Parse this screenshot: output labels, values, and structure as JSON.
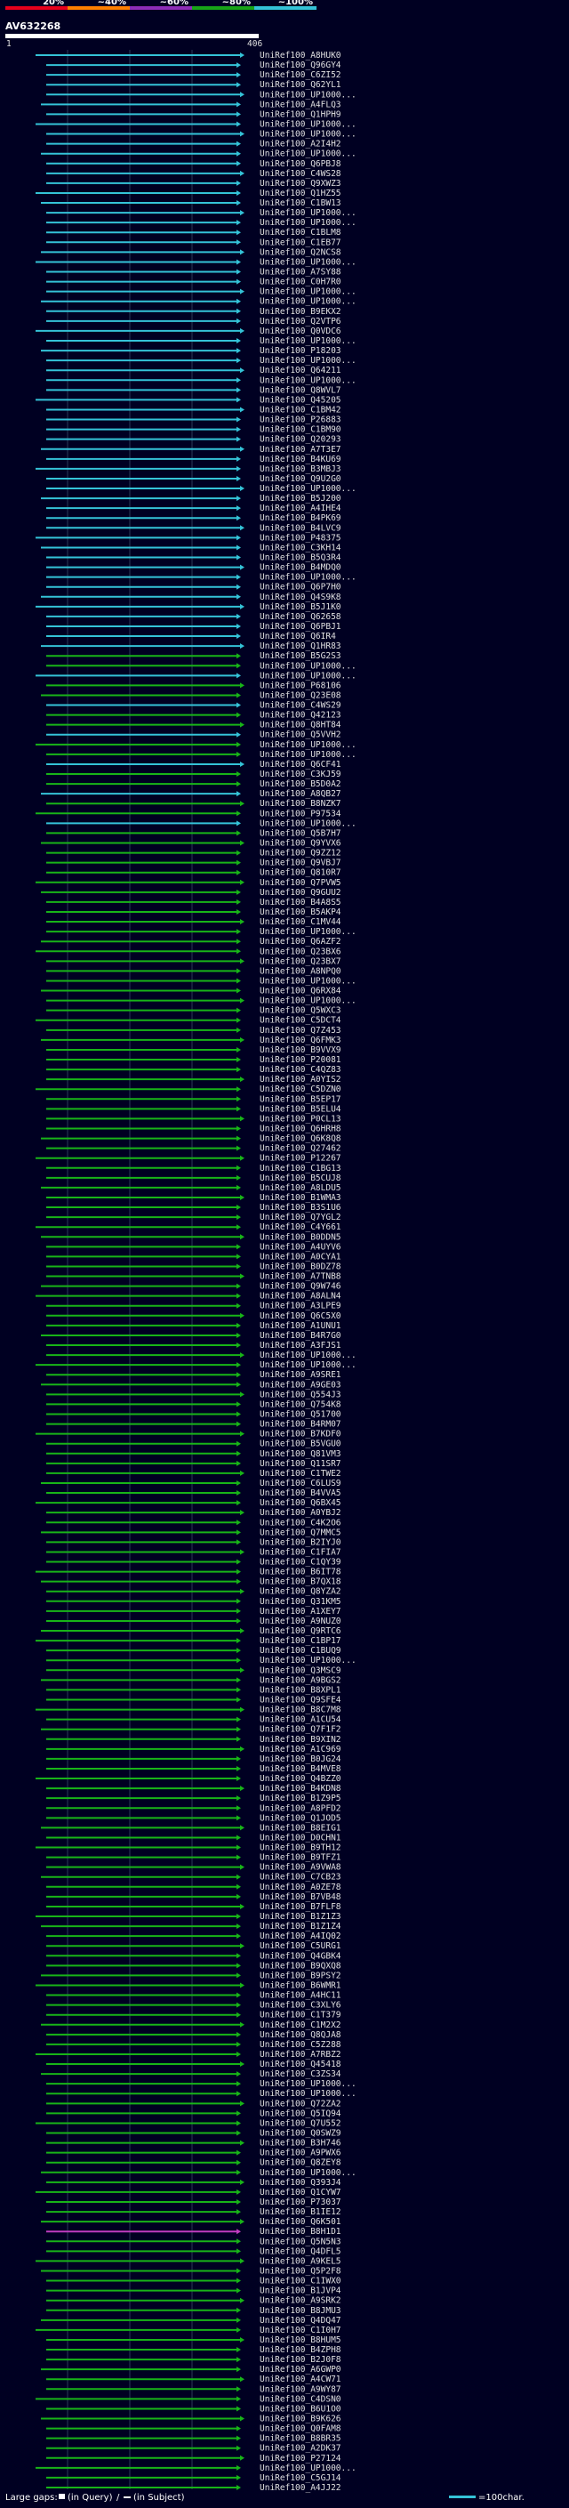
{
  "chart_data": {
    "type": "alignment-overview",
    "query_id": "AV632268",
    "query_length": 406,
    "axis_start_label": "1",
    "axis_end_label": "406",
    "identity_scale": [
      {
        "label": "20%",
        "color": "#e8001c"
      },
      {
        "label": "~40%",
        "color": "#ff7f00"
      },
      {
        "label": "~60%",
        "color": "#8e2db8"
      },
      {
        "label": "~80%",
        "color": "#18a418"
      },
      {
        "label": "~100%",
        "color": "#34c3d8"
      }
    ],
    "hits": [
      "UniRef100_A8HUK0",
      "UniRef100_Q96GY4",
      "UniRef100_C6ZI52",
      "UniRef100_Q62YL1",
      "UniRef100_UP1000...",
      "UniRef100_A4FLQ3",
      "UniRef100_Q1HPH9",
      "UniRef100_UP1000...",
      "UniRef100_UP1000...",
      "UniRef100_A2I4H2",
      "UniRef100_UP1000...",
      "UniRef100_Q6PBJ8",
      "UniRef100_C4WS28",
      "UniRef100_Q9XWZ3",
      "UniRef100_Q1HZ55",
      "UniRef100_C1BW13",
      "UniRef100_UP1000...",
      "UniRef100_UP1000...",
      "UniRef100_C1BLM8",
      "UniRef100_C1EB77",
      "UniRef100_Q2NCS8",
      "UniRef100_UP1000...",
      "UniRef100_A7SY88",
      "UniRef100_C0H7R0",
      "UniRef100_UP1000...",
      "UniRef100_UP1000...",
      "UniRef100_B9EKX2",
      "UniRef100_Q2VTP6",
      "UniRef100_Q0VDC6",
      "UniRef100_UP1000...",
      "UniRef100_P18203",
      "UniRef100_UP1000...",
      "UniRef100_Q64211",
      "UniRef100_UP1000...",
      "UniRef100_Q8WVL7",
      "UniRef100_Q45205",
      "UniRef100_C1BM42",
      "UniRef100_P26883",
      "UniRef100_C1BM90",
      "UniRef100_Q20293",
      "UniRef100_A7T3E7",
      "UniRef100_B4KU69",
      "UniRef100_B3MBJ3",
      "UniRef100_Q9U2G0",
      "UniRef100_UP1000...",
      "UniRef100_B5J200",
      "UniRef100_A4IHE4",
      "UniRef100_B4PK69",
      "UniRef100_B4LVC9",
      "UniRef100_P48375",
      "UniRef100_C3KH14",
      "UniRef100_B5Q3R4",
      "UniRef100_B4MDQ0",
      "UniRef100_UP1000...",
      "UniRef100_Q6P7H0",
      "UniRef100_Q4S9K8",
      "UniRef100_B5J1K0",
      "UniRef100_Q62658",
      "UniRef100_Q6PBJ1",
      "UniRef100_Q6IR4",
      "UniRef100_Q1HR83",
      "UniRef100_B5G2S3",
      "UniRef100_UP1000...",
      "UniRef100_UP1000...",
      "UniRef100_P68106",
      "UniRef100_Q23E08",
      "UniRef100_C4WS29",
      "UniRef100_Q42123",
      "UniRef100_Q8HT84",
      "UniRef100_Q5VVH2",
      "UniRef100_UP1000...",
      "UniRef100_UP1000...",
      "UniRef100_Q6CF41",
      "UniRef100_C3KJ59",
      "UniRef100_B5D0A2",
      "UniRef100_A8QB27",
      "UniRef100_B8NZK7",
      "UniRef100_P97534",
      "UniRef100_UP1000...",
      "UniRef100_Q5B7H7",
      "UniRef100_Q9YVX6",
      "UniRef100_Q9ZZ12",
      "UniRef100_Q9VBJ7",
      "UniRef100_Q810R7",
      "UniRef100_Q7PVW5",
      "UniRef100_Q9GUU2",
      "UniRef100_B4A8S5",
      "UniRef100_B5AKP4",
      "UniRef100_C1MV44",
      "UniRef100_UP1000...",
      "UniRef100_Q6AZF2",
      "UniRef100_Q23BX6",
      "UniRef100_Q23BX7",
      "UniRef100_A8NPQ0",
      "UniRef100_UP1000...",
      "UniRef100_Q6RX84",
      "UniRef100_UP1000...",
      "UniRef100_Q5WXC3",
      "UniRef100_C5DCT4",
      "UniRef100_Q7Z453",
      "UniRef100_Q6FMK3",
      "UniRef100_B9VVX9",
      "UniRef100_P20081",
      "UniRef100_C4QZ83",
      "UniRef100_A0YIS2",
      "UniRef100_C5DZN0",
      "UniRef100_B5EP17",
      "UniRef100_B5ELU4",
      "UniRef100_P0CL13",
      "UniRef100_Q6HRH8",
      "UniRef100_Q6K8Q8",
      "UniRef100_Q27462",
      "UniRef100_P12267",
      "UniRef100_C1BG13",
      "UniRef100_B5CUJ8",
      "UniRef100_A8LDU5",
      "UniRef100_B1WMA3",
      "UniRef100_B3S1U6",
      "UniRef100_Q7YGL2",
      "UniRef100_C4Y661",
      "UniRef100_B0DDN5",
      "UniRef100_A4UYV6",
      "UniRef100_A0CYA1",
      "UniRef100_B0DZ78",
      "UniRef100_A7TNB8",
      "UniRef100_Q9W746",
      "UniRef100_A8ALN4",
      "UniRef100_A3LPE9",
      "UniRef100_Q6C5X0",
      "UniRef100_A1UNU1",
      "UniRef100_B4R7G0",
      "UniRef100_A3FJS1",
      "UniRef100_UP1000...",
      "UniRef100_UP1000...",
      "UniRef100_A9SRE1",
      "UniRef100_A9GE03",
      "UniRef100_Q554J3",
      "UniRef100_Q754K8",
      "UniRef100_Q51700",
      "UniRef100_B4RM07",
      "UniRef100_B7KDF0",
      "UniRef100_B5VGU0",
      "UniRef100_Q81VM3",
      "UniRef100_Q11SR7",
      "UniRef100_C1TWE2",
      "UniRef100_C6LUS9",
      "UniRef100_B4VVA5",
      "UniRef100_Q6BX45",
      "UniRef100_A0YBJ2",
      "UniRef100_C4K2O6",
      "UniRef100_Q7MMC5",
      "UniRef100_B2IYJ0",
      "UniRef100_C1FIA7",
      "UniRef100_C1QY39",
      "UniRef100_B6IT78",
      "UniRef100_B7QX18",
      "UniRef100_Q8YZA2",
      "UniRef100_Q31KM5",
      "UniRef100_A1XEY7",
      "UniRef100_A9NUZ0",
      "UniRef100_Q9RTC6",
      "UniRef100_C1BP17",
      "UniRef100_C1BUQ9",
      "UniRef100_UP1000...",
      "UniRef100_Q3MSC9",
      "UniRef100_A9BGS2",
      "UniRef100_B8XPL1",
      "UniRef100_Q9SFE4",
      "UniRef100_B8C7M8",
      "UniRef100_A1CU54",
      "UniRef100_Q7F1F2",
      "UniRef100_B9XIN2",
      "UniRef100_A1C969",
      "UniRef100_B0JG24",
      "UniRef100_B4MVE8",
      "UniRef100_Q4BZZ0",
      "UniRef100_B4KDN8",
      "UniRef100_B1Z9P5",
      "UniRef100_A8PFD2",
      "UniRef100_Q1JOD5",
      "UniRef100_B8EIG1",
      "UniRef100_D0CHN1",
      "UniRef100_B9TH12",
      "UniRef100_B9TFZ1",
      "UniRef100_A9VWA8",
      "UniRef100_C7CB23",
      "UniRef100_A0ZE78",
      "UniRef100_B7VB48",
      "UniRef100_B7FLF8",
      "UniRef100_B1Z1Z3",
      "UniRef100_B1Z1Z4",
      "UniRef100_A4IQ02",
      "UniRef100_C5URG1",
      "UniRef100_Q4GBK4",
      "UniRef100_B9QXQ8",
      "UniRef100_B9PSY2",
      "UniRef100_B6WMR1",
      "UniRef100_A4HC11",
      "UniRef100_C3XLY6",
      "UniRef100_C1T379",
      "UniRef100_C1M2X2",
      "UniRef100_Q8QJA8",
      "UniRef100_C5Z288",
      "UniRef100_A7RBZ2",
      "UniRef100_Q45418",
      "UniRef100_C3ZS34",
      "UniRef100_UP1000...",
      "UniRef100_UP1000...",
      "UniRef100_Q72ZA2",
      "UniRef100_Q5IQ94",
      "UniRef100_Q7U552",
      "UniRef100_Q0SWZ9",
      "UniRef100_B3H746",
      "UniRef100_A9PWX6",
      "UniRef100_Q8ZEY8",
      "UniRef100_UP1000...",
      "UniRef100_Q393J4",
      "UniRef100_Q1CYW7",
      "UniRef100_P73037",
      "UniRef100_B1IE12",
      "UniRef100_Q6K501",
      "UniRef100_B8H1D1",
      "UniRef100_Q5N5N3",
      "UniRef100_Q4DFL5",
      "UniRef100_A9KEL5",
      "UniRef100_Q5P2F8",
      "UniRef100_C1IWX0",
      "UniRef100_B1JVP4",
      "UniRef100_A9SRK2",
      "UniRef100_B8JMU3",
      "UniRef100_Q4DQ47",
      "UniRef100_C1I0H7",
      "UniRef100_B8HUM5",
      "UniRef100_B4ZPH8",
      "UniRef100_B2J0F8",
      "UniRef100_A6GWP0",
      "UniRef100_A4CW71",
      "UniRef100_A9WY87",
      "UniRef100_C4DSN0",
      "UniRef100_B6U1O0",
      "UniRef100_B9K626",
      "UniRef100_Q0FAM8",
      "UniRef100_B8BR35",
      "UniRef100_A2DK37",
      "UniRef100_P27124",
      "UniRef100_UP1000...",
      "UniRef100_C5GJ14",
      "UniRef100_A4JJ22"
    ],
    "footer_label": "Large gaps:",
    "gap_query_label": "(in Query)",
    "gap_subject_label": "(in Subject)",
    "length_legend_label": "=100char."
  }
}
